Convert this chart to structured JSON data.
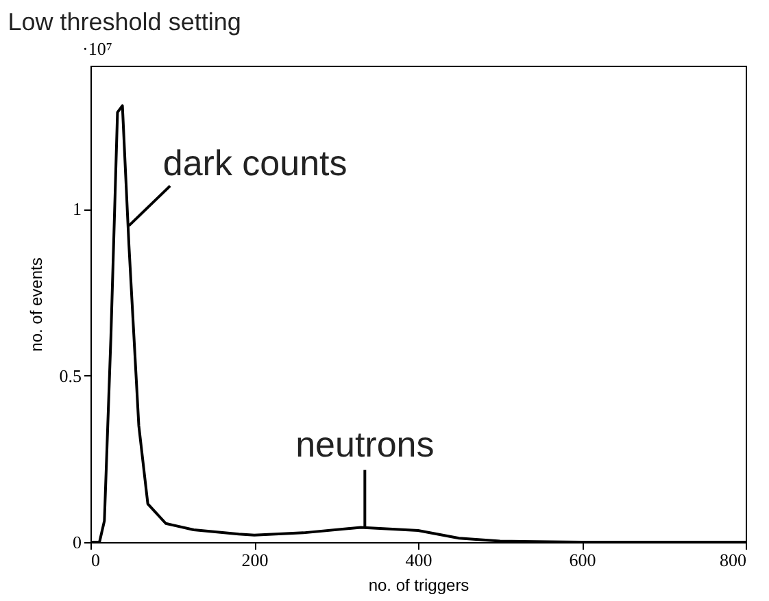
{
  "chart_data": {
    "type": "line",
    "title": "Low threshold setting",
    "xlabel": "no. of triggers",
    "ylabel": "no. of events",
    "x": [
      0,
      11,
      17,
      25,
      33,
      39,
      47,
      59,
      70,
      92,
      126,
      181,
      200,
      260,
      330,
      400,
      450,
      500,
      600,
      700,
      800
    ],
    "series": [
      {
        "color": "#000000",
        "values": [
          0,
          0,
          0.064,
          0.62,
          1.29,
          1.31,
          0.89,
          0.35,
          0.115,
          0.056,
          0.037,
          0.024,
          0.021,
          0.028,
          0.044,
          0.035,
          0.012,
          0.003,
          0,
          0,
          0
        ]
      }
    ],
    "xlim": [
      0,
      800
    ],
    "xticks": [
      0,
      200,
      400,
      600,
      800
    ],
    "ylim": [
      0,
      1.43
    ],
    "yticks": [
      0,
      0.5,
      1
    ],
    "grid": false,
    "marker": "none",
    "line_style": "solid",
    "annotations": [
      "·10⁷",
      {
        "text": "dark counts",
        "x": 47,
        "y": 0.95
      },
      {
        "text": "neutrons",
        "x": 335,
        "y": 0.044
      }
    ]
  }
}
